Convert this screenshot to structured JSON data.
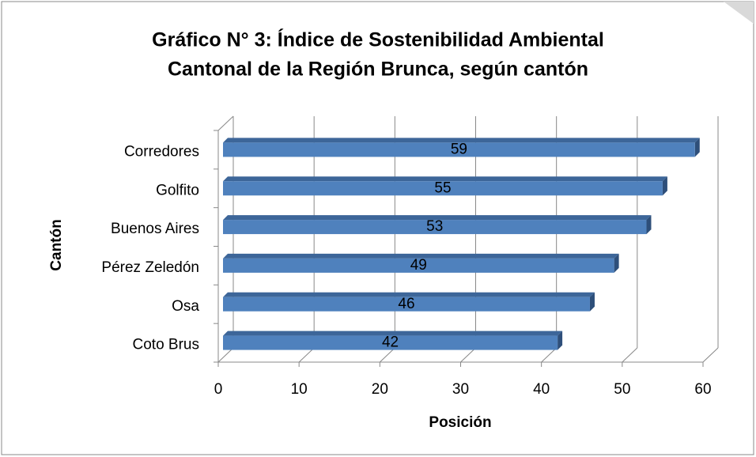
{
  "chart_data": {
    "type": "bar",
    "orientation": "horizontal",
    "title": [
      "Gráfico N° 3: Índice de Sostenibilidad Ambiental",
      "Cantonal de la Región Brunca, según cantón"
    ],
    "x_label": "Posición",
    "y_label": "Cantón",
    "categories": [
      "Corredores",
      "Golfito",
      "Buenos Aires",
      "Pérez Zeledón",
      "Osa",
      "Coto Brus"
    ],
    "values": [
      59,
      55,
      53,
      49,
      46,
      42
    ],
    "color": "#4f81bd",
    "xlim": [
      0,
      60
    ],
    "xticks": [
      0,
      10,
      20,
      30,
      40,
      50,
      60
    ],
    "grid": true
  }
}
